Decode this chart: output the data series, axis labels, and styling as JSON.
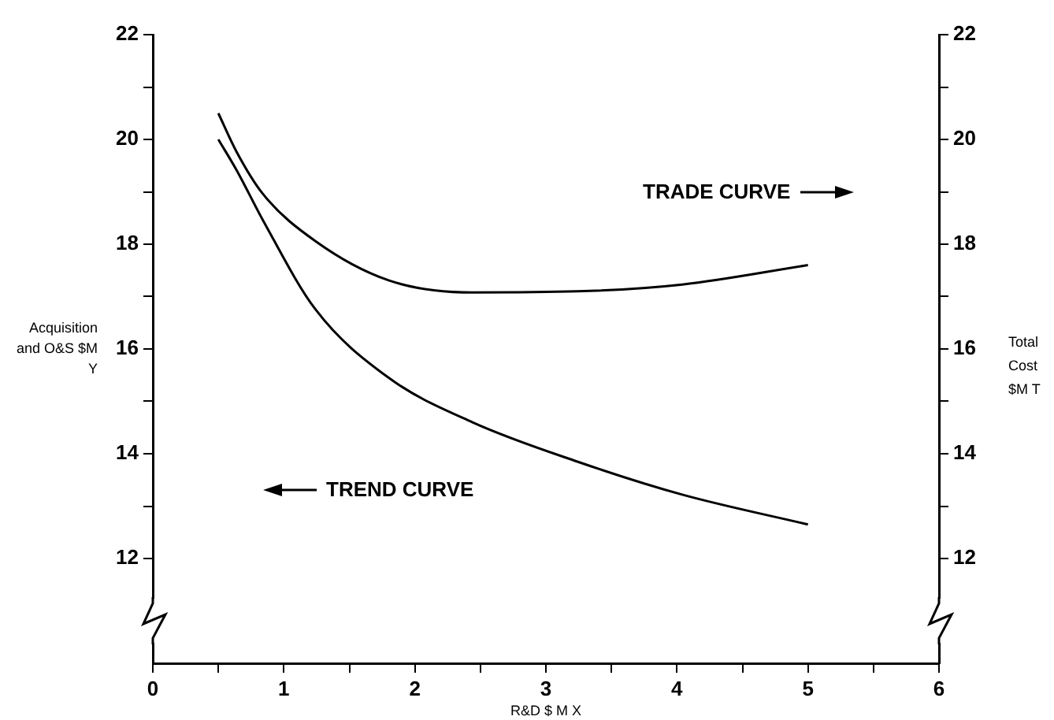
{
  "chart_data": {
    "type": "line",
    "xlabel": "R&D $ M X",
    "ylabel": "Acquisition and O&S $M Y",
    "y2label": "Total Cost $M T",
    "annotations": [
      "TRADE CURVE",
      "TREND CURVE"
    ],
    "series": [
      {
        "color": "#000000",
        "axis": "y2",
        "x": [
          0.5,
          0.64,
          0.84,
          1.24,
          1.8,
          2.44,
          3.24,
          4.04,
          5.0
        ],
        "values": [
          20.5,
          19.76,
          18.96,
          18.06,
          17.31,
          17.08,
          17.1,
          17.23,
          17.6
        ]
      },
      {
        "color": "#000000",
        "x": [
          0.5,
          0.64,
          0.84,
          1.24,
          1.8,
          2.44,
          3.24,
          4.04,
          5.0
        ],
        "values": [
          20.0,
          19.41,
          18.46,
          16.76,
          15.45,
          14.6,
          13.85,
          13.22,
          12.65
        ]
      }
    ],
    "xlim": [
      0,
      6
    ],
    "xticks": [
      0,
      {
        "value": 0.5,
        "label": null
      },
      1,
      {
        "value": 1.5,
        "label": null
      },
      2,
      {
        "value": 2.5,
        "label": null
      },
      3,
      {
        "value": 3.5,
        "label": null
      },
      4,
      {
        "value": 4.5,
        "label": null
      },
      5,
      {
        "value": 5.5,
        "label": null
      },
      6
    ],
    "ylim": [
      10,
      22
    ],
    "yticks": [
      12,
      {
        "value": 13,
        "label": null
      },
      14,
      {
        "value": 15,
        "label": null
      },
      16,
      {
        "value": 17,
        "label": null
      },
      18,
      {
        "value": 19,
        "label": null
      },
      20,
      {
        "value": 21,
        "label": null
      },
      22
    ],
    "y2lim": [
      10,
      22
    ],
    "y2ticks": [
      12,
      {
        "value": 13,
        "label": null
      },
      14,
      {
        "value": 15,
        "label": null
      },
      16,
      {
        "value": 17,
        "label": null
      },
      18,
      {
        "value": 19,
        "label": null
      },
      20,
      {
        "value": 21,
        "label": null
      },
      22
    ],
    "grid": false,
    "legend": false,
    "marker": "none",
    "line_style": "solid"
  }
}
